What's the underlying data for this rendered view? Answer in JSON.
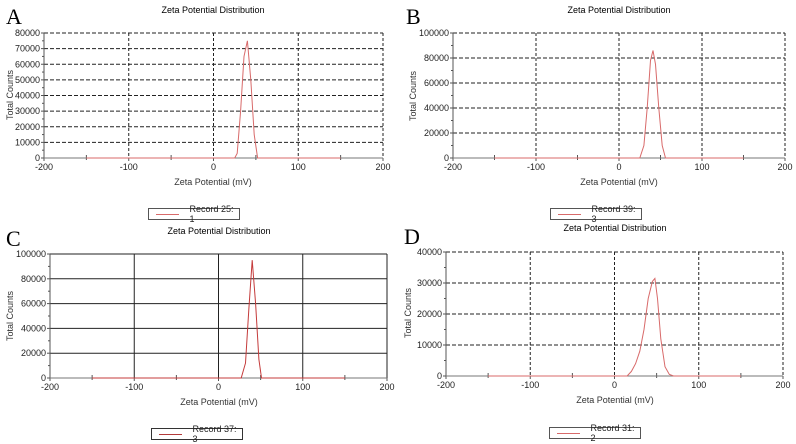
{
  "panels": [
    {
      "letter": "A",
      "title": "Zeta Potential Distribution",
      "ylabel": "Total Counts",
      "xlabel": "Zeta Potential (mV)",
      "legend": "Record 25: 1"
    },
    {
      "letter": "B",
      "title": "Zeta Potential Distribution",
      "ylabel": "Total Counts",
      "xlabel": "Zeta Potential (mV)",
      "legend": "Record 39: 3"
    },
    {
      "letter": "C",
      "title": "Zeta Potential Distribution",
      "ylabel": "Total Counts",
      "xlabel": "Zeta Potential (mV)",
      "legend": "Record 37: 3"
    },
    {
      "letter": "D",
      "title": "Zeta Potential Distribution",
      "ylabel": "Total Counts",
      "xlabel": "Zeta Potential (mV)",
      "legend": "Record 31: 2"
    }
  ],
  "colors": {
    "series": "#d86a6a",
    "grid": "#222222",
    "axis": "#555555"
  },
  "chart_data": [
    {
      "type": "line",
      "panel": "A",
      "title": "Zeta Potential Distribution",
      "xlabel": "Zeta Potential (mV)",
      "ylabel": "Total Counts",
      "xlim": [
        -200,
        200
      ],
      "ylim": [
        0,
        80000
      ],
      "xticks": [
        -200,
        -100,
        0,
        100,
        200
      ],
      "yticks": [
        0,
        10000,
        20000,
        30000,
        40000,
        50000,
        60000,
        70000,
        80000
      ],
      "grid": true,
      "legend_position": "bottom",
      "series": [
        {
          "name": "Record 25: 1",
          "x": [
            -150,
            25,
            28,
            32,
            36,
            40,
            44,
            48,
            52,
            150
          ],
          "y": [
            0,
            0,
            3000,
            30000,
            65000,
            75000,
            50000,
            15000,
            0,
            0
          ]
        }
      ]
    },
    {
      "type": "line",
      "panel": "B",
      "title": "Zeta Potential Distribution",
      "xlabel": "Zeta Potential (mV)",
      "ylabel": "Total Counts",
      "xlim": [
        -200,
        200
      ],
      "ylim": [
        0,
        100000
      ],
      "xticks": [
        -200,
        -100,
        0,
        100,
        200
      ],
      "yticks": [
        0,
        20000,
        40000,
        60000,
        80000,
        100000
      ],
      "grid": true,
      "legend_position": "bottom",
      "series": [
        {
          "name": "Record 39: 3",
          "x": [
            -150,
            25,
            30,
            34,
            38,
            41,
            44,
            48,
            52,
            56,
            150
          ],
          "y": [
            0,
            0,
            10000,
            40000,
            78000,
            86000,
            75000,
            40000,
            10000,
            0,
            0
          ]
        }
      ]
    },
    {
      "type": "line",
      "panel": "C",
      "title": "Zeta Potential Distribution",
      "xlabel": "Zeta Potential (mV)",
      "ylabel": "Total Counts",
      "xlim": [
        -200,
        200
      ],
      "ylim": [
        0,
        100000
      ],
      "xticks": [
        -200,
        -100,
        0,
        100,
        200
      ],
      "yticks": [
        0,
        20000,
        40000,
        60000,
        80000,
        100000
      ],
      "grid": true,
      "legend_position": "bottom",
      "series": [
        {
          "name": "Record 37: 3",
          "x": [
            -150,
            27,
            32,
            36,
            40,
            44,
            48,
            51,
            150
          ],
          "y": [
            0,
            0,
            12000,
            55000,
            95000,
            60000,
            15000,
            0,
            0
          ]
        }
      ]
    },
    {
      "type": "line",
      "panel": "D",
      "title": "Zeta Potential Distribution",
      "xlabel": "Zeta Potential (mV)",
      "ylabel": "Total Counts",
      "xlim": [
        -200,
        200
      ],
      "ylim": [
        0,
        40000
      ],
      "xticks": [
        -200,
        -100,
        0,
        100,
        200
      ],
      "yticks": [
        0,
        10000,
        20000,
        30000,
        40000
      ],
      "grid": true,
      "legend_position": "bottom",
      "series": [
        {
          "name": "Record 31: 2",
          "x": [
            -150,
            15,
            20,
            25,
            30,
            35,
            40,
            45,
            48,
            51,
            55,
            60,
            65,
            70,
            150
          ],
          "y": [
            0,
            0,
            1500,
            4000,
            8000,
            15000,
            25000,
            30500,
            31500,
            25000,
            12000,
            3000,
            500,
            0,
            0
          ]
        }
      ]
    }
  ]
}
